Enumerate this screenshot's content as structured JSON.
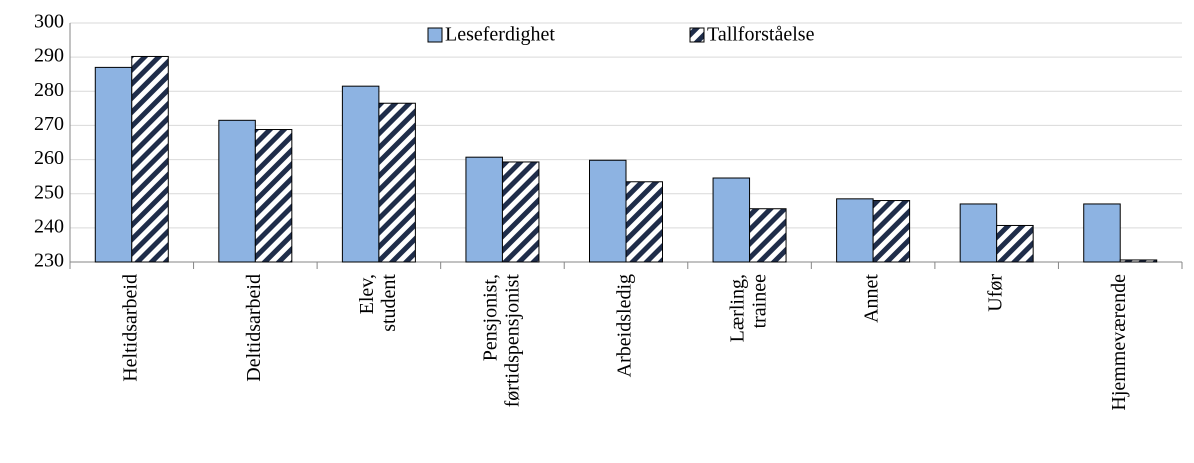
{
  "chart_data": {
    "type": "bar",
    "categories": [
      "Heltidsarbeid",
      "Deltidsarbeid",
      "Elev,\nstudent",
      "Pensjonist,\nførtidspensjonist",
      "Arbeidsledig",
      "Lærling,\ntrainee",
      "Annet",
      "Ufør",
      "Hjemmeværende"
    ],
    "series": [
      {
        "name": "Leseferdighet",
        "color": "#8db3e2",
        "values": [
          287,
          271.5,
          281.5,
          260.7,
          259.8,
          254.6,
          248.5,
          247,
          247
        ]
      },
      {
        "name": "Tallforståelse",
        "color": "#1f2d4a",
        "values": [
          290.2,
          268.8,
          276.5,
          259.3,
          253.5,
          245.6,
          248,
          240.7,
          230.6
        ]
      }
    ],
    "ylim": [
      230,
      300
    ],
    "yticks": [
      230,
      240,
      250,
      260,
      270,
      280,
      290,
      300
    ],
    "grid": true,
    "legend": "top"
  }
}
